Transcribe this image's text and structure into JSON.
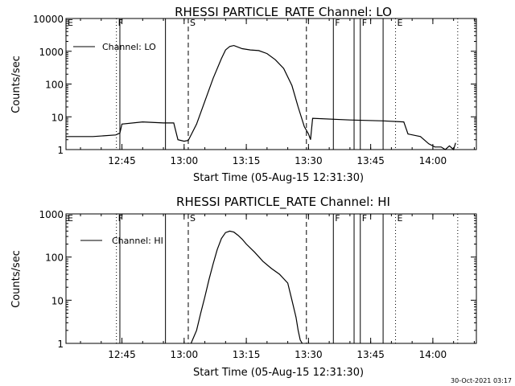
{
  "chart_data": [
    {
      "type": "line",
      "title": "RHESSI PARTICLE_RATE Channel: LO",
      "xlabel": "Start Time (05-Aug-15 12:31:30)",
      "ylabel": "Counts/sec",
      "y_scale": "log",
      "ylim": [
        1,
        10000
      ],
      "xlim": [
        "12:31:30",
        "14:10:30"
      ],
      "x_ticks": [
        "12:45",
        "13:00",
        "13:15",
        "13:30",
        "13:45",
        "14:00"
      ],
      "y_ticks": [
        "1",
        "10",
        "100",
        "1000",
        "10000"
      ],
      "legend": {
        "position": "top-left",
        "entries": [
          "Channel: LO"
        ]
      },
      "series": [
        {
          "name": "Channel: LO",
          "x": [
            "12:31:30",
            "12:38:00",
            "12:43:30",
            "12:44:30",
            "12:45:00",
            "12:50:00",
            "12:55:00",
            "12:57:30",
            "12:58:30",
            "13:00:00",
            "13:01:00",
            "13:03:00",
            "13:05:00",
            "13:07:00",
            "13:09:00",
            "13:10:00",
            "13:11:00",
            "13:12:00",
            "13:14:00",
            "13:16:00",
            "13:18:00",
            "13:20:00",
            "13:22:00",
            "13:24:00",
            "13:26:00",
            "13:27:30",
            "13:29:00",
            "13:30:00",
            "13:30:30",
            "13:31:00",
            "13:40:00",
            "13:48:00",
            "13:53:00",
            "13:54:00",
            "13:57:00",
            "13:59:00",
            "14:00:30",
            "14:02:00",
            "14:03:00",
            "14:04:00",
            "14:05:00",
            "14:05:30"
          ],
          "values": [
            2.5,
            2.5,
            2.8,
            3.2,
            6,
            7,
            6.5,
            6.5,
            2,
            1.8,
            1.9,
            6,
            30,
            150,
            600,
            1100,
            1400,
            1500,
            1200,
            1100,
            1050,
            850,
            550,
            300,
            90,
            20,
            5,
            3,
            2,
            9,
            8,
            7.5,
            7,
            3,
            2.5,
            1.5,
            1.2,
            1.2,
            1,
            1.3,
            1,
            1.6
          ]
        }
      ],
      "marker_labels": [
        {
          "label": "E",
          "x": "12:31:30",
          "style": "solid"
        },
        {
          "label": "F",
          "x": "12:43:40",
          "style": "dotted"
        },
        {
          "label": "",
          "x": "12:44:30",
          "style": "solid"
        },
        {
          "label": "",
          "x": "12:55:30",
          "style": "solid"
        },
        {
          "label": "S",
          "x": "13:01:00",
          "style": "dashed"
        },
        {
          "label": "",
          "x": "13:29:30",
          "style": "dashed"
        },
        {
          "label": "F",
          "x": "13:36:00",
          "style": "solid"
        },
        {
          "label": "",
          "x": "13:41:00",
          "style": "solid"
        },
        {
          "label": "F",
          "x": "13:42:30",
          "style": "solid"
        },
        {
          "label": "",
          "x": "13:48:00",
          "style": "solid"
        },
        {
          "label": "E",
          "x": "13:51:00",
          "style": "dotted"
        },
        {
          "label": "",
          "x": "14:06:00",
          "style": "dotted"
        }
      ]
    },
    {
      "type": "line",
      "title": "RHESSI PARTICLE_RATE Channel: HI",
      "xlabel": "Start Time (05-Aug-15 12:31:30)",
      "ylabel": "Counts/sec",
      "y_scale": "log",
      "ylim": [
        1,
        1000
      ],
      "xlim": [
        "12:31:30",
        "14:10:30"
      ],
      "x_ticks": [
        "12:45",
        "13:00",
        "13:15",
        "13:30",
        "13:45",
        "14:00"
      ],
      "y_ticks": [
        "1",
        "10",
        "100",
        "1000"
      ],
      "legend": {
        "position": "top-left",
        "entries": [
          "Channel: HI"
        ]
      },
      "series": [
        {
          "name": "Channel: HI",
          "x": [
            "13:01:40",
            "13:03:00",
            "13:04:00",
            "13:05:00",
            "13:06:00",
            "13:07:00",
            "13:08:00",
            "13:09:00",
            "13:10:00",
            "13:11:00",
            "13:12:00",
            "13:13:00",
            "13:14:00",
            "13:15:00",
            "13:17:00",
            "13:19:00",
            "13:21:00",
            "13:23:00",
            "13:25:00",
            "13:26:00",
            "13:27:00",
            "13:27:30",
            "13:28:00",
            "13:28:30"
          ],
          "values": [
            1,
            2,
            5,
            12,
            30,
            70,
            150,
            270,
            370,
            400,
            380,
            320,
            260,
            200,
            130,
            80,
            55,
            40,
            25,
            10,
            4,
            2,
            1.2,
            1
          ]
        }
      ],
      "marker_labels": [
        {
          "label": "E",
          "x": "12:31:30",
          "style": "solid"
        },
        {
          "label": "F",
          "x": "12:43:40",
          "style": "dotted"
        },
        {
          "label": "",
          "x": "12:44:30",
          "style": "solid"
        },
        {
          "label": "",
          "x": "12:55:30",
          "style": "solid"
        },
        {
          "label": "S",
          "x": "13:01:00",
          "style": "dashed"
        },
        {
          "label": "",
          "x": "13:29:30",
          "style": "dashed"
        },
        {
          "label": "F",
          "x": "13:36:00",
          "style": "solid"
        },
        {
          "label": "",
          "x": "13:41:00",
          "style": "solid"
        },
        {
          "label": "F",
          "x": "13:42:30",
          "style": "solid"
        },
        {
          "label": "",
          "x": "13:48:00",
          "style": "solid"
        },
        {
          "label": "E",
          "x": "13:51:00",
          "style": "dotted"
        },
        {
          "label": "",
          "x": "14:06:00",
          "style": "dotted"
        }
      ]
    }
  ],
  "footer": {
    "timestamp": "30-Oct-2021 03:17"
  },
  "colors": {
    "background": "#ffffff",
    "foreground": "#000000"
  }
}
